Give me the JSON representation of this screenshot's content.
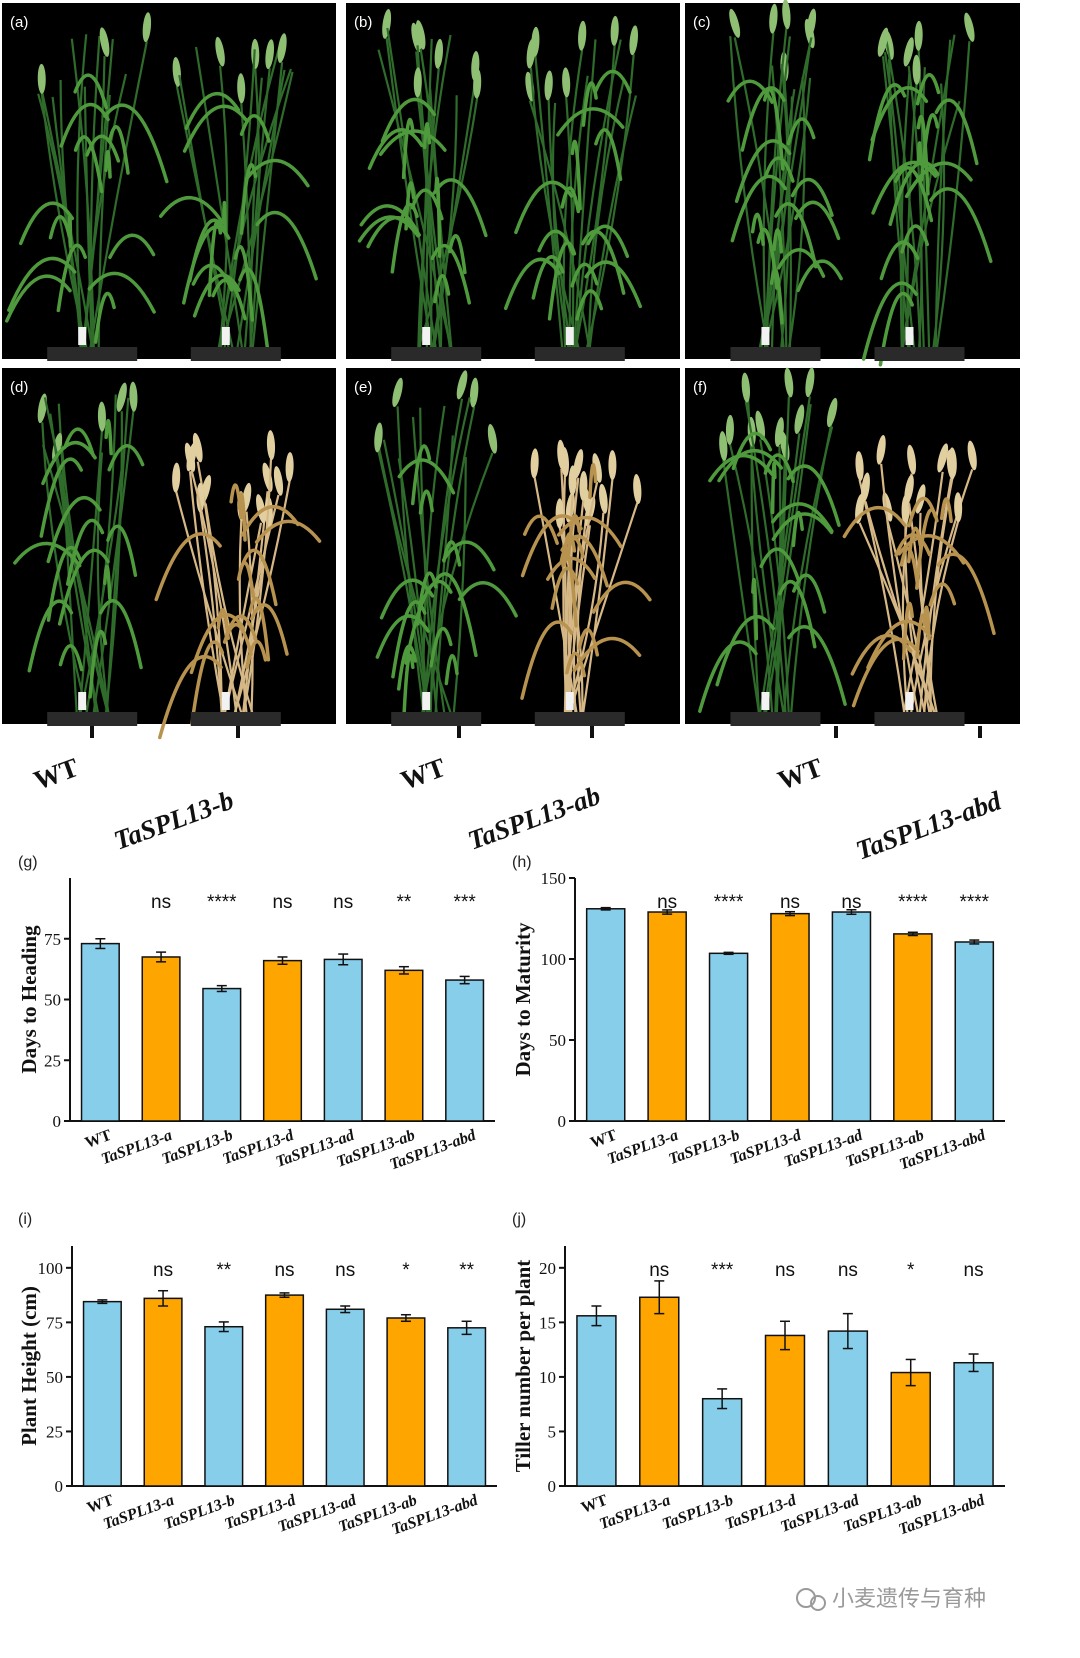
{
  "photo_panels": [
    {
      "label": "(a)",
      "mutant": "TaSPL13-b",
      "stage": "green"
    },
    {
      "label": "(b)",
      "mutant": "TaSPL13-ab",
      "stage": "green"
    },
    {
      "label": "(c)",
      "mutant": "TaSPL13-abd",
      "stage": "green"
    },
    {
      "label": "(d)",
      "mutant": "TaSPL13-b",
      "stage": "mature"
    },
    {
      "label": "(e)",
      "mutant": "TaSPL13-ab",
      "stage": "mature"
    },
    {
      "label": "(f)",
      "mutant": "TaSPL13-abd",
      "stage": "mature"
    }
  ],
  "genotype_labels": [
    {
      "wt": "WT",
      "mutant": "TaSPL13-b"
    },
    {
      "wt": "WT",
      "mutant": "TaSPL13-ab"
    },
    {
      "wt": "WT",
      "mutant": "TaSPL13-abd"
    }
  ],
  "colors": {
    "blue": "#87ceeb",
    "orange": "#ffa500",
    "stem": "#2f6b2a",
    "leaf": "#4f9a3c",
    "straw": "#d6b886",
    "background": "#000000"
  },
  "chart_data": [
    {
      "label": "(g)",
      "type": "bar",
      "ylabel": "Days to Heading",
      "categories": [
        "WT",
        "TaSPL13-a",
        "TaSPL13-b",
        "TaSPL13-d",
        "TaSPL13-ad",
        "TaSPL13-ab",
        "TaSPL13-abd"
      ],
      "values": [
        73,
        67.5,
        54.5,
        66,
        66.5,
        62,
        58
      ],
      "errors": [
        2,
        2,
        1.2,
        1.5,
        2.2,
        1.5,
        1.5
      ],
      "significance": [
        "",
        "ns",
        "****",
        "ns",
        "ns",
        "**",
        "***"
      ],
      "ylim": [
        0,
        100
      ],
      "yticks": [
        0,
        25,
        50,
        75
      ],
      "bar_colors": [
        "blue",
        "orange",
        "blue",
        "orange",
        "blue",
        "orange",
        "blue"
      ]
    },
    {
      "label": "(h)",
      "type": "bar",
      "ylabel": "Days to Maturity",
      "categories": [
        "WT",
        "TaSPL13-a",
        "TaSPL13-b",
        "TaSPL13-d",
        "TaSPL13-ad",
        "TaSPL13-ab",
        "TaSPL13-abd"
      ],
      "values": [
        131,
        129,
        103.5,
        128,
        129,
        115.5,
        110.5
      ],
      "errors": [
        0.7,
        1.3,
        0.6,
        1.2,
        1.4,
        1.0,
        1.2
      ],
      "significance": [
        "",
        "ns",
        "****",
        "ns",
        "ns",
        "****",
        "****"
      ],
      "ylim": [
        0,
        150
      ],
      "yticks": [
        0,
        50,
        100,
        150
      ],
      "bar_colors": [
        "blue",
        "orange",
        "blue",
        "orange",
        "blue",
        "orange",
        "blue"
      ]
    },
    {
      "label": "(i)",
      "type": "bar",
      "ylabel": "Plant Height (cm)",
      "categories": [
        "WT",
        "TaSPL13-a",
        "TaSPL13-b",
        "TaSPL13-d",
        "TaSPL13-ad",
        "TaSPL13-ab",
        "TaSPL13-abd"
      ],
      "values": [
        84.5,
        86,
        73,
        87.5,
        81,
        77,
        72.5
      ],
      "errors": [
        0.8,
        3.5,
        2.2,
        1.0,
        1.5,
        1.5,
        3.0
      ],
      "significance": [
        "",
        "ns",
        "**",
        "ns",
        "ns",
        "*",
        "**"
      ],
      "ylim": [
        0,
        110
      ],
      "yticks": [
        0,
        25,
        50,
        75,
        100
      ],
      "bar_colors": [
        "blue",
        "orange",
        "blue",
        "orange",
        "blue",
        "orange",
        "blue"
      ]
    },
    {
      "label": "(j)",
      "type": "bar",
      "ylabel": "Tiller number per plant",
      "categories": [
        "WT",
        "TaSPL13-a",
        "TaSPL13-b",
        "TaSPL13-d",
        "TaSPL13-ad",
        "TaSPL13-ab",
        "TaSPL13-abd"
      ],
      "values": [
        15.6,
        17.3,
        8.0,
        13.8,
        14.2,
        10.4,
        11.3
      ],
      "errors": [
        0.9,
        1.5,
        0.9,
        1.3,
        1.6,
        1.2,
        0.8
      ],
      "significance": [
        "",
        "ns",
        "***",
        "ns",
        "ns",
        "*",
        "ns"
      ],
      "ylim": [
        0,
        22
      ],
      "yticks": [
        0,
        5,
        10,
        15,
        20
      ],
      "bar_colors": [
        "blue",
        "orange",
        "blue",
        "orange",
        "blue",
        "orange",
        "blue"
      ]
    }
  ],
  "watermark": "小麦遗传与育种"
}
